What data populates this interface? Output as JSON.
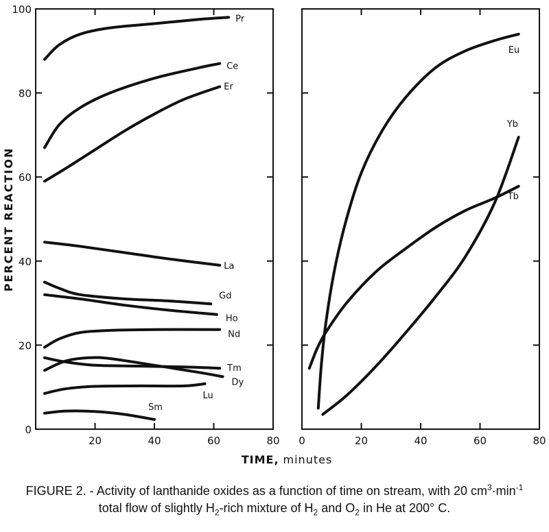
{
  "chart_data": {
    "type": "line",
    "ylabel": "PERCENT REACTION",
    "xlabel_bold": "TIME,",
    "xlabel_unit": "minutes",
    "panels": [
      {
        "xlim": [
          0,
          80
        ],
        "ylim": [
          0,
          100
        ],
        "xticks": [
          "20",
          "40",
          "60",
          "80"
        ],
        "yticks": [
          "0",
          "20",
          "40",
          "60",
          "80",
          "100"
        ],
        "series": [
          {
            "name": "Pr",
            "points": [
              [
                3,
                88
              ],
              [
                8,
                91.5
              ],
              [
                15,
                94
              ],
              [
                25,
                95.5
              ],
              [
                40,
                96.5
              ],
              [
                55,
                97.5
              ],
              [
                65,
                98
              ]
            ]
          },
          {
            "name": "Ce",
            "points": [
              [
                3,
                67
              ],
              [
                8,
                72.5
              ],
              [
                15,
                76.5
              ],
              [
                25,
                80
              ],
              [
                40,
                83.5
              ],
              [
                55,
                86
              ],
              [
                62,
                87
              ]
            ]
          },
          {
            "name": "Er",
            "points": [
              [
                3,
                59
              ],
              [
                10,
                62
              ],
              [
                20,
                66.5
              ],
              [
                30,
                71
              ],
              [
                40,
                75
              ],
              [
                50,
                78.5
              ],
              [
                62,
                81.5
              ]
            ]
          },
          {
            "name": "La",
            "points": [
              [
                3,
                44.5
              ],
              [
                15,
                43.5
              ],
              [
                30,
                42
              ],
              [
                45,
                40.5
              ],
              [
                62,
                39
              ]
            ]
          },
          {
            "name": "Gd",
            "points": [
              [
                3,
                35
              ],
              [
                8,
                33.5
              ],
              [
                15,
                32
              ],
              [
                30,
                31
              ],
              [
                45,
                30.5
              ],
              [
                59,
                29.8
              ]
            ]
          },
          {
            "name": "Ho",
            "points": [
              [
                3,
                32
              ],
              [
                15,
                31
              ],
              [
                30,
                29.5
              ],
              [
                45,
                28.3
              ],
              [
                61,
                27.3
              ]
            ]
          },
          {
            "name": "Nd",
            "points": [
              [
                3,
                19.5
              ],
              [
                8,
                21.5
              ],
              [
                15,
                23
              ],
              [
                25,
                23.5
              ],
              [
                40,
                23.7
              ],
              [
                62,
                23.7
              ]
            ]
          },
          {
            "name": "Tm",
            "points": [
              [
                3,
                17
              ],
              [
                10,
                16
              ],
              [
                20,
                15.2
              ],
              [
                35,
                15
              ],
              [
                50,
                14.8
              ],
              [
                62,
                14.5
              ]
            ]
          },
          {
            "name": "Dy",
            "points": [
              [
                3,
                14
              ],
              [
                10,
                16.2
              ],
              [
                18,
                17
              ],
              [
                25,
                16.8
              ],
              [
                40,
                15.2
              ],
              [
                55,
                13.5
              ],
              [
                63,
                12.5
              ]
            ]
          },
          {
            "name": "Lu",
            "points": [
              [
                3,
                8.5
              ],
              [
                10,
                9.6
              ],
              [
                20,
                10.2
              ],
              [
                35,
                10.3
              ],
              [
                50,
                10.3
              ],
              [
                57,
                10.8
              ]
            ]
          },
          {
            "name": "Sm",
            "points": [
              [
                3,
                3.8
              ],
              [
                10,
                4.3
              ],
              [
                20,
                4.2
              ],
              [
                30,
                3.5
              ],
              [
                40,
                2.3
              ]
            ]
          }
        ]
      },
      {
        "xlim": [
          0,
          80
        ],
        "ylim": [
          0,
          100
        ],
        "xticks": [
          "0",
          "20",
          "40",
          "60",
          "80"
        ],
        "yticks": [],
        "series": [
          {
            "name": "Eu",
            "points": [
              [
                5.5,
                5
              ],
              [
                6.5,
                15
              ],
              [
                8,
                25
              ],
              [
                11,
                38
              ],
              [
                15,
                50
              ],
              [
                20,
                61
              ],
              [
                27,
                71
              ],
              [
                35,
                79
              ],
              [
                45,
                86
              ],
              [
                55,
                90
              ],
              [
                65,
                92.5
              ],
              [
                73,
                94
              ]
            ]
          },
          {
            "name": "Yb",
            "points": [
              [
                7,
                3.5
              ],
              [
                15,
                8
              ],
              [
                25,
                15
              ],
              [
                35,
                23
              ],
              [
                45,
                31.5
              ],
              [
                55,
                41
              ],
              [
                65,
                54
              ],
              [
                73,
                69.5
              ]
            ]
          },
          {
            "name": "Tb",
            "points": [
              [
                2.5,
                14.5
              ],
              [
                5,
                19
              ],
              [
                8,
                23
              ],
              [
                15,
                30
              ],
              [
                25,
                37.5
              ],
              [
                35,
                43
              ],
              [
                45,
                48
              ],
              [
                55,
                52
              ],
              [
                65,
                55
              ],
              [
                73,
                57.8
              ]
            ]
          }
        ]
      }
    ]
  },
  "caption": {
    "line1": {
      "p1": "FIGURE 2. - Activity of lanthanide oxides as a function of time on stream, with 20 cm",
      "sup1": "3",
      "p2": "·min",
      "sup2": "-1"
    },
    "line2": {
      "p1": "total flow of slightly H",
      "sub1": "2",
      "p2": "-rich mixture of H",
      "sub2": "2",
      "p3": " and O",
      "sub3": "2",
      "p4": " in He at 200° C."
    }
  }
}
